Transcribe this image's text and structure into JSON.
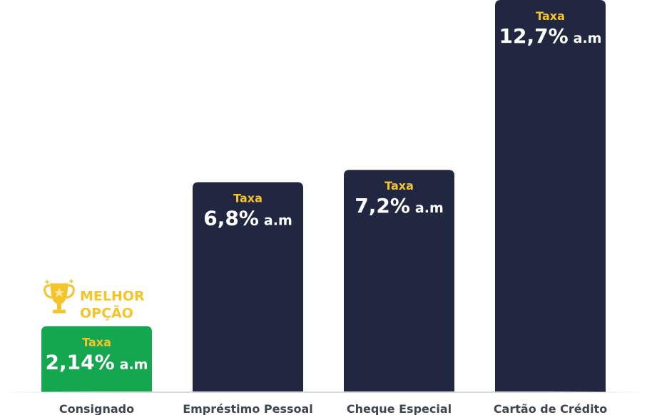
{
  "chart_data": {
    "type": "bar",
    "categories": [
      "Consignado",
      "Empréstimo Pessoal",
      "Cheque Especial",
      "Cartão de Crédito"
    ],
    "values": [
      2.14,
      6.8,
      7.2,
      12.7
    ],
    "value_labels": [
      "2,14%",
      "6,8%",
      "7,2%",
      "12,7%"
    ],
    "unit": "a.m",
    "rate_caption": "Taxa",
    "highlight_index": 0,
    "highlight_badge": [
      "MELHOR",
      "OPÇÃO"
    ],
    "title": "",
    "xlabel": "",
    "ylabel": "",
    "ylim": [
      0,
      12.7
    ],
    "grid": false,
    "colors": {
      "bar": "#222741",
      "highlight_bar": "#15a650",
      "caption": "#f6c429",
      "value_text": "#ffffff",
      "category_text": "#3f4650",
      "badge": "#f6c429",
      "baseline": "#e3e4e8"
    }
  }
}
